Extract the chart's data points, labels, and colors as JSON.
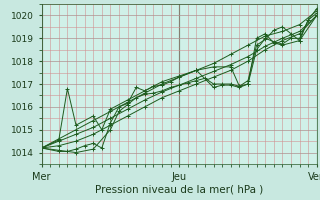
{
  "xlabel": "Pression niveau de la mer( hPa )",
  "bg_color": "#c8e8e0",
  "plot_bg_color": "#d0f0e8",
  "grid_major_color": "#c8a8b8",
  "grid_minor_color": "#d8c0c8",
  "grid_vert_color": "#b0b0b8",
  "line_color": "#1e5c1e",
  "ylim": [
    1013.5,
    1020.5
  ],
  "xlim": [
    0,
    96
  ],
  "yticks": [
    1014,
    1015,
    1016,
    1017,
    1018,
    1019,
    1020
  ],
  "xtick_positions": [
    0,
    48,
    96
  ],
  "xtick_labels": [
    "Mer",
    "Jeu",
    "Ven"
  ],
  "vlines": [
    0,
    48,
    96
  ],
  "series": [
    [
      0,
      1014.2,
      6,
      1014.6,
      12,
      1015.0,
      18,
      1015.4,
      24,
      1015.8,
      30,
      1016.2,
      36,
      1016.6,
      42,
      1017.0,
      48,
      1017.3,
      54,
      1017.6,
      60,
      1017.9,
      66,
      1018.3,
      72,
      1018.7,
      78,
      1019.1,
      84,
      1019.3,
      90,
      1019.6,
      96,
      1020.2
    ],
    [
      0,
      1014.2,
      6,
      1014.1,
      12,
      1014.0,
      18,
      1014.15,
      24,
      1015.0,
      27,
      1015.8,
      30,
      1016.1,
      33,
      1016.4,
      36,
      1016.55,
      39,
      1016.6,
      42,
      1016.7,
      45,
      1016.85,
      48,
      1016.95,
      51,
      1017.05,
      54,
      1017.15,
      57,
      1017.25,
      60,
      1017.0,
      63,
      1017.0,
      66,
      1017.0,
      69,
      1016.9,
      72,
      1017.0,
      75,
      1018.5,
      78,
      1019.0,
      81,
      1018.85,
      84,
      1018.75,
      87,
      1019.0,
      90,
      1019.0,
      93,
      1019.8,
      96,
      1020.1
    ],
    [
      0,
      1014.2,
      6,
      1014.3,
      12,
      1014.5,
      18,
      1014.8,
      24,
      1015.2,
      30,
      1015.6,
      36,
      1016.0,
      42,
      1016.4,
      48,
      1016.7,
      54,
      1017.0,
      60,
      1017.3,
      66,
      1017.6,
      72,
      1018.0,
      78,
      1018.5,
      84,
      1018.9,
      90,
      1019.2,
      96,
      1020.0
    ],
    [
      0,
      1014.2,
      6,
      1014.5,
      12,
      1014.8,
      18,
      1015.1,
      24,
      1015.5,
      30,
      1015.9,
      36,
      1016.3,
      42,
      1016.65,
      48,
      1016.95,
      54,
      1017.25,
      60,
      1017.55,
      66,
      1017.85,
      72,
      1018.2,
      78,
      1018.65,
      84,
      1019.0,
      90,
      1019.3,
      96,
      1020.0
    ],
    [
      0,
      1014.2,
      6,
      1014.05,
      9,
      1014.05,
      12,
      1014.15,
      15,
      1014.3,
      18,
      1014.4,
      21,
      1014.2,
      24,
      1015.3,
      27,
      1016.0,
      30,
      1016.15,
      33,
      1016.85,
      36,
      1016.7,
      39,
      1016.9,
      42,
      1016.95,
      45,
      1017.1,
      48,
      1017.3,
      54,
      1017.6,
      60,
      1017.75,
      66,
      1017.75,
      69,
      1016.9,
      72,
      1017.15,
      75,
      1018.7,
      78,
      1018.95,
      81,
      1019.35,
      84,
      1019.5,
      87,
      1019.2,
      90,
      1018.9,
      93,
      1019.8,
      96,
      1020.3
    ],
    [
      0,
      1014.2,
      6,
      1014.55,
      9,
      1016.8,
      12,
      1015.2,
      18,
      1015.6,
      21,
      1015.0,
      24,
      1015.9,
      30,
      1016.3,
      36,
      1016.7,
      42,
      1017.1,
      48,
      1017.35,
      54,
      1017.6,
      60,
      1016.85,
      63,
      1016.95,
      66,
      1016.95,
      69,
      1016.85,
      72,
      1017.0,
      75,
      1019.0,
      78,
      1019.2,
      81,
      1018.8,
      84,
      1018.7,
      90,
      1018.9,
      96,
      1020.0
    ]
  ]
}
